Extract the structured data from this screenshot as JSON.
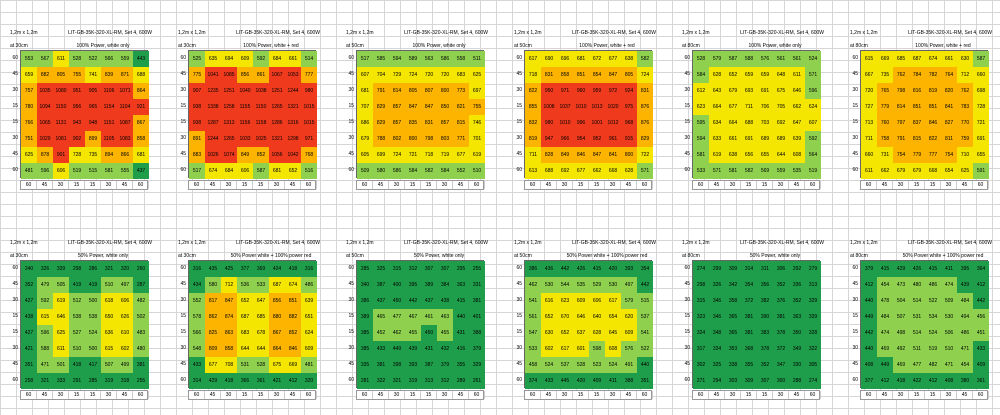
{
  "legend": {
    "scale": [
      {
        "max": 450,
        "color": "#1e9e4a"
      },
      {
        "max": 600,
        "color": "#8fd14f"
      },
      {
        "max": 750,
        "color": "#f4e600"
      },
      {
        "max": 900,
        "color": "#fcb400"
      },
      {
        "max": 1300,
        "color": "#ef3a1d"
      }
    ]
  },
  "axis_labels": [
    "60",
    "45",
    "30",
    "15",
    "15",
    "30",
    "45",
    "60"
  ],
  "panels": [
    {
      "size": "1,2m x 1,2m",
      "title": "LIT-GB-35K-320-XL-RM, Set 4, 600W",
      "at": "at 30cm",
      "subtitle": "100% Power, white only",
      "values": [
        [
          553,
          567,
          611,
          528,
          522,
          566,
          559,
          443
        ],
        [
          659,
          882,
          805,
          755,
          741,
          839,
          871,
          688
        ],
        [
          757,
          1035,
          1080,
          951,
          905,
          1106,
          1071,
          864
        ],
        [
          780,
          1094,
          1150,
          956,
          965,
          1154,
          1104,
          921
        ],
        [
          766,
          1065,
          1131,
          943,
          948,
          1151,
          1087,
          867
        ],
        [
          751,
          1029,
          1081,
          902,
          899,
          1105,
          1083,
          858
        ],
        [
          625,
          878,
          901,
          728,
          735,
          894,
          866,
          681
        ],
        [
          481,
          596,
          606,
          519,
          515,
          581,
          555,
          437
        ]
      ]
    },
    {
      "size": "1,2m x 1,2m",
      "title": "LIT-GB-35K-320-XL-RM, Set 4, 600W",
      "at": "at 30cm",
      "subtitle": "100% Power, white + red",
      "values": [
        [
          525,
          635,
          694,
          609,
          592,
          684,
          661,
          514
        ],
        [
          775,
          1041,
          1085,
          856,
          861,
          1067,
          1053,
          777
        ],
        [
          907,
          1235,
          1251,
          1040,
          1038,
          1251,
          1244,
          980
        ],
        [
          938,
          1338,
          1258,
          1155,
          1150,
          1265,
          1321,
          1015
        ],
        [
          938,
          1287,
          1313,
          1156,
          1158,
          1286,
          1316,
          1015
        ],
        [
          891,
          1244,
          1265,
          1033,
          1025,
          1321,
          1298,
          971
        ],
        [
          883,
          1026,
          1074,
          849,
          852,
          1056,
          1042,
          768
        ],
        [
          517,
          674,
          684,
          606,
          587,
          681,
          652,
          516
        ]
      ]
    },
    {
      "size": "1,2m x 1,2m",
      "title": "LIT-GB-35K-320-XL-RM, Set 4, 600W",
      "at": "at 50cm",
      "subtitle": "100% Power, white only",
      "values": [
        [
          517,
          585,
          594,
          589,
          563,
          586,
          558,
          511
        ],
        [
          607,
          704,
          729,
          724,
          720,
          720,
          683,
          625
        ],
        [
          681,
          791,
          814,
          805,
          807,
          800,
          773,
          697
        ],
        [
          707,
          829,
          857,
          847,
          847,
          850,
          821,
          755
        ],
        [
          686,
          829,
          857,
          835,
          831,
          857,
          815,
          746
        ],
        [
          679,
          788,
          802,
          800,
          798,
          803,
          771,
          701
        ],
        [
          605,
          699,
          724,
          721,
          718,
          719,
          677,
          619
        ],
        [
          509,
          580,
          586,
          584,
          582,
          584,
          552,
          510
        ]
      ]
    },
    {
      "size": "1,2m x 1,2m",
      "title": "LIT-GB-35K-320-XL-RM, Set 4, 600W",
      "at": "at 50cm",
      "subtitle": "100% Power, white + red",
      "values": [
        [
          617,
          690,
          696,
          681,
          672,
          677,
          638,
          582
        ],
        [
          718,
          831,
          858,
          851,
          854,
          847,
          805,
          724
        ],
        [
          822,
          950,
          971,
          960,
          959,
          972,
          924,
          831
        ],
        [
          855,
          1008,
          1037,
          1010,
          1013,
          1020,
          975,
          876
        ],
        [
          832,
          980,
          1010,
          996,
          1001,
          1012,
          968,
          876
        ],
        [
          819,
          947,
          966,
          954,
          952,
          961,
          915,
          829
        ],
        [
          711,
          828,
          849,
          846,
          847,
          841,
          800,
          722
        ],
        [
          613,
          688,
          692,
          677,
          662,
          668,
          628,
          571
        ]
      ]
    },
    {
      "size": "1,2m x 1,2m",
      "title": "LIT-GB-35K-320-XL-RM, Set 4, 600W",
      "at": "at 80cm",
      "subtitle": "100% Power, white only",
      "values": [
        [
          528,
          579,
          587,
          588,
          576,
          561,
          561,
          524
        ],
        [
          584,
          628,
          652,
          659,
          659,
          648,
          611,
          571
        ],
        [
          612,
          643,
          679,
          693,
          691,
          675,
          646,
          596
        ],
        [
          623,
          664,
          677,
          711,
          706,
          705,
          662,
          624
        ],
        [
          595,
          634,
          664,
          688,
          703,
          692,
          647,
          607
        ],
        [
          594,
          633,
          661,
          691,
          689,
          689,
          639,
          592
        ],
        [
          581,
          619,
          638,
          656,
          655,
          644,
          608,
          564
        ],
        [
          533,
          571,
          581,
          582,
          569,
          559,
          535,
          519
        ]
      ]
    },
    {
      "size": "1,2m x 1,2m",
      "title": "LIT-GB-35K-320-XL-RM, Set 4, 600W",
      "at": "at 80cm",
      "subtitle": "100% Power, white + red",
      "values": [
        [
          615,
          669,
          685,
          687,
          674,
          661,
          630,
          587
        ],
        [
          667,
          735,
          762,
          784,
          782,
          764,
          712,
          660
        ],
        [
          720,
          765,
          798,
          816,
          819,
          820,
          762,
          698
        ],
        [
          727,
          779,
          814,
          851,
          851,
          841,
          783,
          728
        ],
        [
          713,
          760,
          797,
          837,
          846,
          827,
          770,
          721
        ],
        [
          711,
          758,
          791,
          815,
          822,
          811,
          759,
          691
        ],
        [
          660,
          731,
          754,
          779,
          777,
          754,
          710,
          655
        ],
        [
          611,
          662,
          679,
          679,
          668,
          654,
          625,
          591
        ]
      ]
    },
    {
      "size": "1,2m x 1,2m",
      "title": "LIT-GB-35K-320-XL-RM, Set 4, 600W",
      "at": "at 30cm",
      "subtitle": "50% Power, white only",
      "values": [
        [
          240,
          326,
          339,
          298,
          286,
          321,
          320,
          260
        ],
        [
          352,
          479,
          505,
          419,
          419,
          510,
          497,
          287
        ],
        [
          427,
          592,
          619,
          512,
          500,
          618,
          606,
          482
        ],
        [
          438,
          615,
          646,
          538,
          538,
          650,
          626,
          502
        ],
        [
          427,
          596,
          625,
          527,
          524,
          636,
          610,
          483
        ],
        [
          421,
          588,
          611,
          510,
          500,
          615,
          602,
          480
        ],
        [
          351,
          471,
          501,
          418,
          417,
          507,
          499,
          381
        ],
        [
          258,
          321,
          333,
          291,
          285,
          319,
          318,
          255
        ]
      ]
    },
    {
      "size": "1,2m x 1,2m",
      "title": "LIT-GB-35K-320-XL-RM, Set 4, 600W",
      "at": "at 30cm",
      "subtitle": "50% Power white + 100% power red",
      "values": [
        [
          316,
          435,
          425,
          377,
          369,
          424,
          418,
          316
        ],
        [
          434,
          580,
          712,
          536,
          533,
          687,
          674,
          486
        ],
        [
          552,
          817,
          847,
          652,
          647,
          856,
          851,
          639
        ],
        [
          578,
          862,
          874,
          687,
          685,
          880,
          882,
          651
        ],
        [
          566,
          825,
          863,
          683,
          678,
          867,
          852,
          624
        ],
        [
          548,
          809,
          858,
          644,
          644,
          864,
          846,
          609
        ],
        [
          433,
          677,
          708,
          531,
          528,
          675,
          669,
          481
        ],
        [
          314,
          429,
          418,
          366,
          361,
          421,
          412,
          320
        ]
      ]
    },
    {
      "size": "1,2m x 1,2m",
      "title": "LIT-GB-35K-320-XL-RM, Set 4, 600W",
      "at": "at 50cm",
      "subtitle": "50% Power, white only",
      "values": [
        [
          285,
          325,
          315,
          312,
          307,
          307,
          295,
          255
        ],
        [
          340,
          387,
          400,
          395,
          389,
          384,
          363,
          331
        ],
        [
          386,
          437,
          450,
          442,
          437,
          438,
          415,
          381
        ],
        [
          389,
          465,
          477,
          467,
          461,
          463,
          440,
          401
        ],
        [
          385,
          452,
          462,
          455,
          450,
          455,
          431,
          388
        ],
        [
          385,
          433,
          449,
          439,
          431,
          432,
          416,
          379
        ],
        [
          335,
          381,
          398,
          393,
          387,
          379,
          355,
          329
        ],
        [
          281,
          322,
          321,
          319,
          313,
          312,
          289,
          261
        ]
      ]
    },
    {
      "size": "1,2m x 1,2m",
      "title": "LIT-GB-35K-320-XL-RM, Set 4, 600W",
      "at": "at 50cm",
      "subtitle": "50% Power white + 100% power red",
      "values": [
        [
          386,
          436,
          442,
          426,
          415,
          420,
          393,
          354
        ],
        [
          462,
          530,
          544,
          535,
          529,
          530,
          497,
          442
        ],
        [
          541,
          616,
          623,
          609,
          606,
          617,
          579,
          515
        ],
        [
          561,
          652,
          670,
          646,
          640,
          654,
          620,
          537
        ],
        [
          547,
          630,
          652,
          637,
          628,
          645,
          609,
          541
        ],
        [
          533,
          602,
          617,
          601,
          598,
          608,
          576,
          522
        ],
        [
          458,
          524,
          537,
          528,
          523,
          524,
          491,
          440
        ],
        [
          374,
          433,
          445,
          420,
          409,
          411,
          388,
          351
        ]
      ]
    },
    {
      "size": "1,2m x 1,2m",
      "title": "LIT-GB-35K-320-XL-RM, Set 4, 600W",
      "at": "at 80cm",
      "subtitle": "50% Power, white only",
      "values": [
        [
          274,
          299,
          309,
          314,
          311,
          306,
          292,
          279
        ],
        [
          298,
          326,
          342,
          354,
          356,
          352,
          336,
          313
        ],
        [
          315,
          346,
          358,
          372,
          382,
          376,
          352,
          329
        ],
        [
          323,
          346,
          365,
          381,
          390,
          381,
          363,
          339
        ],
        [
          324,
          348,
          365,
          381,
          383,
          378,
          350,
          328
        ],
        [
          317,
          334,
          353,
          368,
          378,
          372,
          349,
          322
        ],
        [
          302,
          325,
          338,
          355,
          352,
          347,
          330,
          305
        ],
        [
          271,
          294,
          303,
          309,
          307,
          300,
          288,
          274
        ]
      ]
    },
    {
      "size": "1,2m x 1,2m",
      "title": "LIT-GB-35K-320-XL-RM, Set 4, 600W",
      "at": "at 80cm",
      "subtitle": "50% Power white + 100% power red",
      "values": [
        [
          379,
          415,
          429,
          426,
          415,
          411,
          395,
          364
        ],
        [
          412,
          454,
          473,
          480,
          486,
          474,
          439,
          412
        ],
        [
          440,
          478,
          504,
          514,
          522,
          509,
          484,
          442
        ],
        [
          449,
          484,
          507,
          531,
          534,
          530,
          494,
          456
        ],
        [
          442,
          474,
          498,
          514,
          524,
          506,
          486,
          451
        ],
        [
          440,
          469,
          492,
          511,
          519,
          510,
          471,
          433
        ],
        [
          408,
          449,
          469,
          477,
          482,
          471,
          454,
          409
        ],
        [
          377,
          412,
          418,
          422,
          412,
          408,
          380,
          361
        ]
      ]
    }
  ]
}
